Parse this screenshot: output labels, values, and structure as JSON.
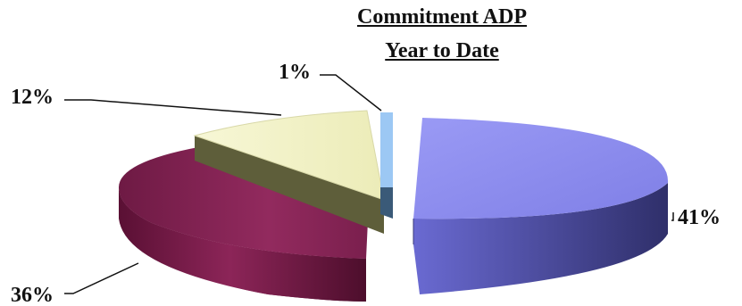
{
  "chart_data": {
    "type": "pie",
    "title": [
      "Commitment ADP",
      "Year to Date"
    ],
    "slices": [
      {
        "label": "41%",
        "value": 41,
        "color": "#8f8ff0"
      },
      {
        "label": "36%",
        "value": 36,
        "color": "#8b2558"
      },
      {
        "label": "12%",
        "value": 12,
        "color": "#f4f4c8"
      },
      {
        "label": "1%",
        "value": 1,
        "color": "#8fc0f0"
      }
    ],
    "style": "3d-exploded"
  }
}
